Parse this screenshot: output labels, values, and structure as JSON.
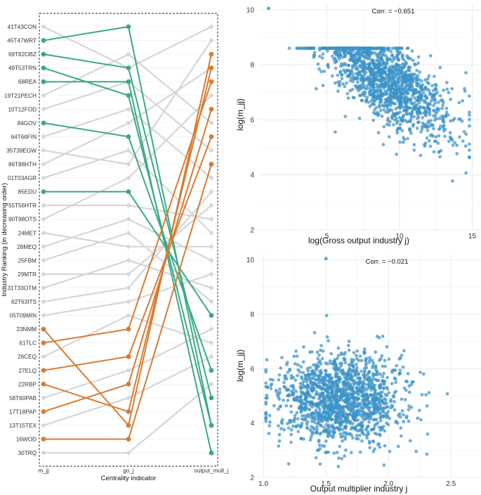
{
  "chart_data": [
    {
      "type": "slope",
      "ylabel": "Industry Ranking (in decreasing order)",
      "xlabel": "Centrality indicator",
      "indicators": [
        "m_jj",
        "go_j",
        "output_mult_j"
      ],
      "industries": [
        "41T43CON",
        "45T47WRT",
        "69T82OBZ",
        "49T53TRN",
        "68REA",
        "19T21PECH",
        "10T12FOD",
        "84GOV",
        "64T66FIN",
        "35T39EGW",
        "86T88HTH",
        "01T03AGR",
        "85EDU",
        "55T56HTR",
        "90T98OTS",
        "24MET",
        "28MEQ",
        "25FBM",
        "29MTR",
        "31T33OTM",
        "62T63ITS",
        "05T09MIN",
        "23NMM",
        "61TLC",
        "26CEQ",
        "27ELQ",
        "22RBP",
        "58T60PAB",
        "17T18PAP",
        "13T15TEX",
        "16WOD",
        "30TRQ"
      ],
      "colors": {
        "top": "#3aaa84",
        "bottom": "#d97b30",
        "other": "#d6d6d6"
      },
      "links": [
        {
          "industry": "41T43CON",
          "group": "other",
          "ranks": [
            1,
            4,
            1
          ]
        },
        {
          "industry": "45T47WRT",
          "group": "top",
          "ranks": [
            2,
            1,
            30
          ]
        },
        {
          "industry": "69T82OBZ",
          "group": "top",
          "ranks": [
            3,
            4,
            28
          ]
        },
        {
          "industry": "49T53TRN",
          "group": "top",
          "ranks": [
            4,
            6,
            30
          ]
        },
        {
          "industry": "68REA",
          "group": "top",
          "ranks": [
            5,
            5,
            32
          ]
        },
        {
          "industry": "19T21PECH",
          "group": "other",
          "ranks": [
            6,
            3,
            8
          ]
        },
        {
          "industry": "10T12FOD",
          "group": "other",
          "ranks": [
            7,
            5,
            10
          ]
        },
        {
          "industry": "84GOV",
          "group": "top",
          "ranks": [
            8,
            9,
            26
          ]
        },
        {
          "industry": "64T66FIN",
          "group": "other",
          "ranks": [
            9,
            7,
            12
          ]
        },
        {
          "industry": "35T39EGW",
          "group": "other",
          "ranks": [
            10,
            11,
            2
          ]
        },
        {
          "industry": "86T88HTH",
          "group": "other",
          "ranks": [
            11,
            8,
            4
          ]
        },
        {
          "industry": "01T03AGR",
          "group": "other",
          "ranks": [
            12,
            10,
            16
          ]
        },
        {
          "industry": "85EDU",
          "group": "top",
          "ranks": [
            13,
            13,
            22
          ]
        },
        {
          "industry": "55T56HTR",
          "group": "other",
          "ranks": [
            14,
            14,
            15
          ]
        },
        {
          "industry": "90T98OTS",
          "group": "other",
          "ranks": [
            15,
            12,
            6
          ]
        },
        {
          "industry": "24MET",
          "group": "other",
          "ranks": [
            16,
            17,
            17
          ]
        },
        {
          "industry": "28MEQ",
          "group": "other",
          "ranks": [
            17,
            15,
            18
          ]
        },
        {
          "industry": "25FBM",
          "group": "other",
          "ranks": [
            18,
            16,
            21
          ]
        },
        {
          "industry": "29MTR",
          "group": "other",
          "ranks": [
            19,
            19,
            14
          ]
        },
        {
          "industry": "31T33OTM",
          "group": "other",
          "ranks": [
            20,
            18,
            20
          ]
        },
        {
          "industry": "62T63ITS",
          "group": "other",
          "ranks": [
            21,
            20,
            13
          ]
        },
        {
          "industry": "05T09MIN",
          "group": "other",
          "ranks": [
            22,
            21,
            19
          ]
        },
        {
          "industry": "23NMM",
          "group": "bottom",
          "ranks": [
            23,
            30,
            3
          ]
        },
        {
          "industry": "61TLC",
          "group": "bottom",
          "ranks": [
            24,
            23,
            5
          ]
        },
        {
          "industry": "26CEQ",
          "group": "other",
          "ranks": [
            25,
            22,
            24
          ]
        },
        {
          "industry": "27ELQ",
          "group": "bottom",
          "ranks": [
            26,
            25,
            9
          ]
        },
        {
          "industry": "22RBP",
          "group": "bottom",
          "ranks": [
            27,
            29,
            4
          ]
        },
        {
          "industry": "58T60PAB",
          "group": "other",
          "ranks": [
            28,
            26,
            23
          ]
        },
        {
          "industry": "17T18PAP",
          "group": "bottom",
          "ranks": [
            29,
            27,
            7
          ]
        },
        {
          "industry": "13T15TEX",
          "group": "other",
          "ranks": [
            30,
            28,
            25
          ]
        },
        {
          "industry": "16WOD",
          "group": "bottom",
          "ranks": [
            31,
            31,
            11
          ]
        },
        {
          "industry": "30TRQ",
          "group": "other",
          "ranks": [
            32,
            32,
            27
          ]
        }
      ]
    },
    {
      "type": "scatter",
      "xlabel": "log(Gross output industry j)",
      "ylabel": "log(m_jj)",
      "annotation": "Corr. = −0.651",
      "xlim": [
        0.3,
        15.6
      ],
      "ylim": [
        2.0,
        10.2
      ],
      "xticks": [
        5,
        10,
        15
      ],
      "yticks": [
        2,
        4,
        6,
        8,
        10
      ],
      "point_color": "#3b93c7",
      "n_points": 1500,
      "slope": -0.33,
      "intercept": 7.45,
      "x_mean": 9.0,
      "x_sd": 2.3,
      "x_range": [
        2.0,
        14.8
      ],
      "resid_sd": 0.72,
      "y_range": [
        2.4,
        8.6
      ],
      "outlier": {
        "x": 1.0,
        "y": 10.05
      }
    },
    {
      "type": "scatter",
      "xlabel": "Output multiplier industry j",
      "ylabel": "log(m_jj)",
      "annotation": "Corr. = −0.021",
      "xlim": [
        0.96,
        2.74
      ],
      "ylim": [
        2.0,
        10.2
      ],
      "xticks": [
        1.0,
        1.5,
        2.0,
        2.5
      ],
      "yticks": [
        2,
        4,
        6,
        8,
        10
      ],
      "point_color": "#3b93c7",
      "n_points": 1500,
      "slope": -0.08,
      "intercept": 4.85,
      "x_mean": 1.62,
      "x_sd": 0.26,
      "x_range": [
        1.02,
        2.65
      ],
      "resid_sd": 0.82,
      "y_range": [
        2.4,
        8.6
      ],
      "outlier": {
        "x": 1.5,
        "y": 10.05
      }
    }
  ]
}
